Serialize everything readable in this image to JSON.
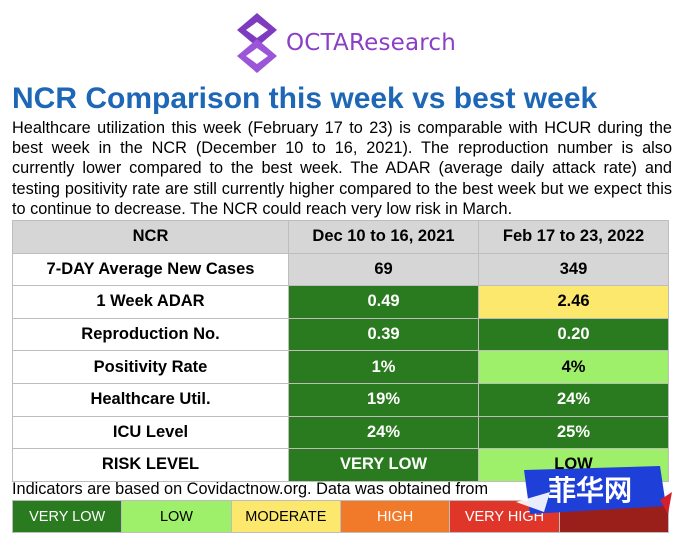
{
  "logo": {
    "text": "OCTAResearch"
  },
  "title": "NCR Comparison this week vs best week",
  "description": "Healthcare utilization this week (February 17 to 23) is comparable with HCUR during the best week in the NCR (December 10 to 16, 2021). The reproduction number is also currently lower compared to the best week. The ADAR (average daily attack rate) and testing positivity rate are still currently higher compared to the best week but we expect this to continue to decrease. The NCR could reach very low risk in March.",
  "table": {
    "headers": [
      "NCR",
      "Dec 10 to 16, 2021",
      "Feb 17 to 23, 2022"
    ],
    "rows": [
      {
        "label": "7-DAY Average New Cases",
        "best": "69",
        "current": "349"
      },
      {
        "label": "1 Week ADAR",
        "best": "0.49",
        "current": "2.46"
      },
      {
        "label": "Reproduction No.",
        "best": "0.39",
        "current": "0.20"
      },
      {
        "label": "Positivity Rate",
        "best": "1%",
        "current": "4%"
      },
      {
        "label": "Healthcare Util.",
        "best": "19%",
        "current": "24%"
      },
      {
        "label": "ICU Level",
        "best": "24%",
        "current": "25%"
      },
      {
        "label": "RISK LEVEL",
        "best": "VERY LOW",
        "current": "LOW"
      }
    ]
  },
  "note": "Indicators are based on Covidactnow.org. Data was obtained from",
  "legend": [
    {
      "label": "VERY LOW",
      "color": "#2a7a1f",
      "text_color": "#ffffff"
    },
    {
      "label": "LOW",
      "color": "#9ef06b",
      "text_color": "#000000"
    },
    {
      "label": "MODERATE",
      "color": "#fde86e",
      "text_color": "#000000"
    },
    {
      "label": "HIGH",
      "color": "#f07a2a",
      "text_color": "#ffffff"
    },
    {
      "label": "VERY HIGH",
      "color": "#e0362a",
      "text_color": "#ffffff"
    },
    {
      "label": "",
      "color": "#9a1f1a",
      "text_color": "#ffffff"
    }
  ],
  "colors": {
    "very_low": "#2a7a1f",
    "low": "#9ef06b",
    "moderate": "#fde86e",
    "header_grey": "#d6d6d6",
    "title_blue": "#1e67b6",
    "logo_purple": "#8a3fc4"
  },
  "watermark": {
    "text": "菲华网"
  }
}
